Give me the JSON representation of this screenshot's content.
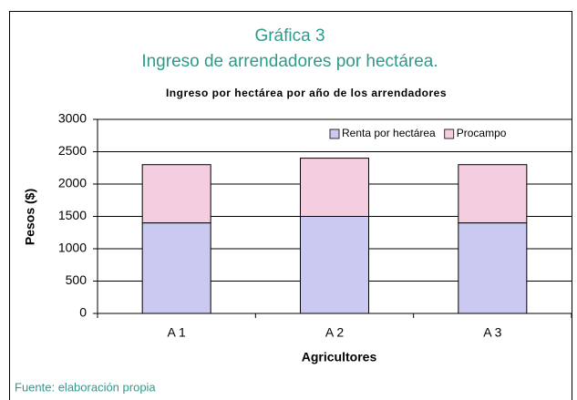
{
  "header": {
    "title": "Gráfica 3",
    "subtitle": "Ingreso de arrendadores por hectárea."
  },
  "chart_data": {
    "type": "stacked_bar",
    "title": "Ingreso por hectárea por año de los arrendadores",
    "xlabel": "Agricultores",
    "ylabel": "Pesos ($)",
    "categories": [
      "A 1",
      "A 2",
      "A 3"
    ],
    "series": [
      {
        "name": "Renta por hectárea",
        "color": "#c9c9f2",
        "values": [
          1400,
          1500,
          1400
        ]
      },
      {
        "name": "Procampo",
        "color": "#f4cde0",
        "values": [
          900,
          900,
          900
        ]
      }
    ],
    "ylim": [
      0,
      3000
    ],
    "yticks": [
      0,
      500,
      1000,
      1500,
      2000,
      2500,
      3000
    ],
    "grid": true,
    "legend": "upper right"
  },
  "footer": {
    "source": "Fuente: elaboración propia"
  }
}
